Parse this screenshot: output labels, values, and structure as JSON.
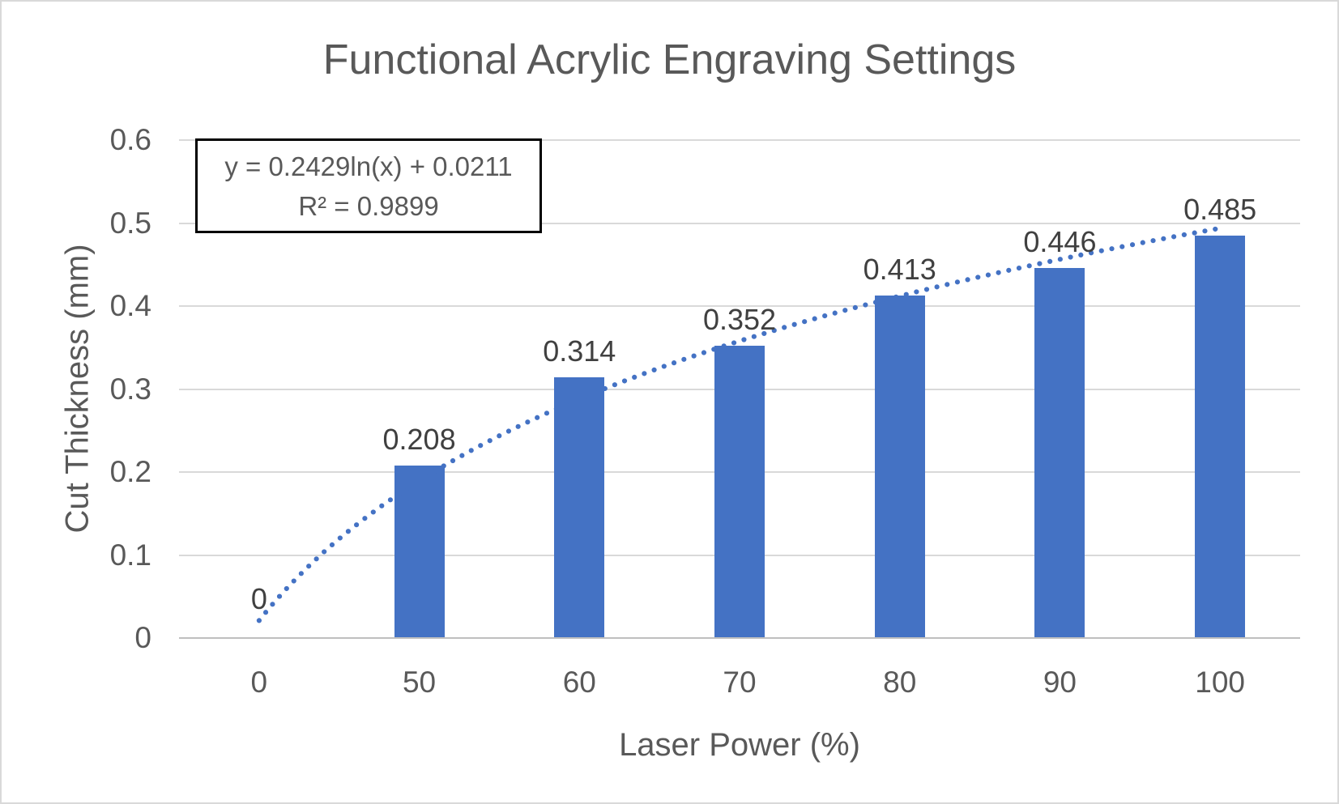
{
  "chart_data": {
    "type": "bar",
    "title": "Functional Acrylic Engraving Settings",
    "categories": [
      "0",
      "50",
      "60",
      "70",
      "80",
      "90",
      "100"
    ],
    "values": [
      0,
      0.208,
      0.314,
      0.352,
      0.413,
      0.446,
      0.485
    ],
    "data_labels": [
      "0",
      "0.208",
      "0.314",
      "0.352",
      "0.413",
      "0.446",
      "0.485"
    ],
    "xlabel": "Laser Power (%)",
    "ylabel": "Cut Thickness (mm)",
    "ylim": [
      0,
      0.6
    ],
    "y_tick_labels": [
      "0",
      "0.1",
      "0.2",
      "0.3",
      "0.4",
      "0.5",
      "0.6"
    ],
    "grid": true,
    "legend": "none",
    "annotation": {
      "equation": "y = 0.2429ln(x) + 0.0211",
      "r_squared": "R² = 0.9899"
    },
    "trendline": {
      "type": "logarithmic",
      "coefficient": 0.2429,
      "intercept": 0.0211,
      "style": "dotted"
    },
    "colors": {
      "bar": "#4472C4",
      "trendline": "#4472C4",
      "title_text": "#595959",
      "axis_text": "#595959",
      "data_label_text": "#404040",
      "gridline": "#D9D9D9",
      "axis_line": "#BFBFBF",
      "equation_text": "#595959",
      "equation_border": "#000000",
      "background": "#FFFFFF",
      "canvas_border": "#D9D9D9"
    }
  }
}
